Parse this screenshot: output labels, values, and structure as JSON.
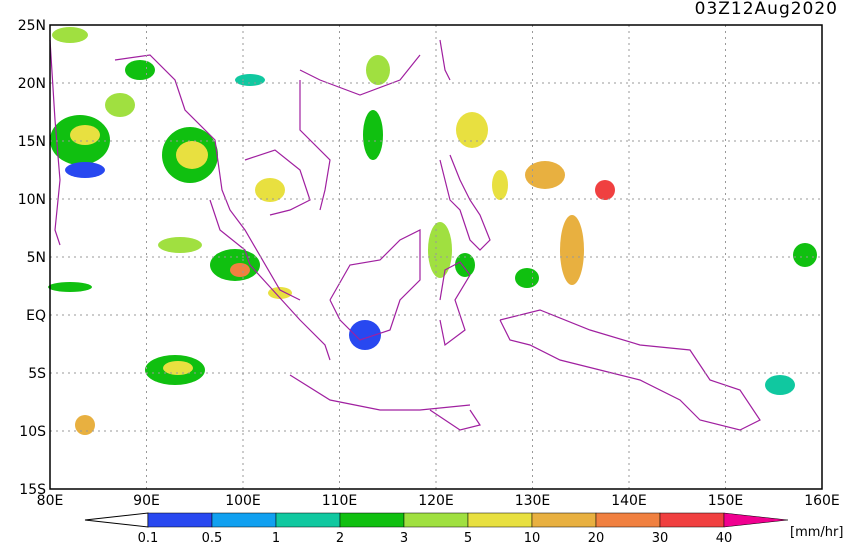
{
  "map": {
    "title": "03Z12Aug2020",
    "lat_labels": [
      {
        "value": 25,
        "label": "25N"
      },
      {
        "value": 20,
        "label": "20N"
      },
      {
        "value": 15,
        "label": "15N"
      },
      {
        "value": 10,
        "label": "10N"
      },
      {
        "value": 5,
        "label": "5N"
      },
      {
        "value": 0,
        "label": "EQ"
      },
      {
        "value": -5,
        "label": "5S"
      },
      {
        "value": -10,
        "label": "10S"
      },
      {
        "value": -15,
        "label": "15S"
      }
    ],
    "lon_labels": [
      {
        "value": 80,
        "label": "80E"
      },
      {
        "value": 90,
        "label": "90E"
      },
      {
        "value": 100,
        "label": "100E"
      },
      {
        "value": 110,
        "label": "110E"
      },
      {
        "value": 120,
        "label": "120E"
      },
      {
        "value": 130,
        "label": "130E"
      },
      {
        "value": 140,
        "label": "140E"
      },
      {
        "value": 150,
        "label": "150E"
      },
      {
        "value": 160,
        "label": "160E"
      }
    ],
    "colorbar": {
      "labels": [
        0.1,
        0.5,
        1,
        2,
        3,
        5,
        10,
        20,
        30,
        40
      ],
      "colors": [
        "#2848f0",
        "#10a0f0",
        "#10c8a0",
        "#10c010",
        "#a0e040",
        "#e8e040",
        "#e8b040",
        "#f08040",
        "#f04040",
        "#f00090"
      ],
      "unit": "[mm/hr]"
    }
  }
}
